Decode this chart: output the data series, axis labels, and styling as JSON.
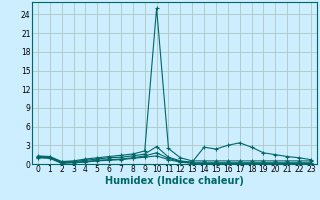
{
  "title": "",
  "xlabel": "Humidex (Indice chaleur)",
  "ylabel": "",
  "background_color": "#cceeff",
  "grid_color_major": "#aacccc",
  "grid_color_minor": "#e8c8c8",
  "line_color": "#006666",
  "x_values": [
    0,
    1,
    2,
    3,
    4,
    5,
    6,
    7,
    8,
    9,
    10,
    11,
    12,
    13,
    14,
    15,
    16,
    17,
    18,
    19,
    20,
    21,
    22,
    23
  ],
  "series": [
    [
      1.3,
      1.2,
      0.4,
      0.5,
      0.8,
      1.0,
      1.2,
      1.4,
      1.6,
      2.1,
      25.0,
      2.5,
      1.0,
      0.5,
      0.5,
      0.5,
      0.5,
      0.5,
      0.5,
      0.5,
      0.5,
      0.5,
      0.5,
      0.5
    ],
    [
      1.2,
      1.1,
      0.3,
      0.4,
      0.6,
      0.8,
      1.0,
      1.1,
      1.3,
      1.6,
      2.8,
      1.1,
      0.5,
      0.3,
      2.7,
      2.4,
      3.0,
      3.4,
      2.7,
      1.8,
      1.5,
      1.2,
      1.0,
      0.7
    ],
    [
      1.1,
      1.0,
      0.2,
      0.3,
      0.4,
      0.6,
      0.7,
      0.8,
      1.0,
      1.3,
      1.8,
      0.9,
      0.4,
      0.2,
      0.2,
      0.2,
      0.2,
      0.2,
      0.2,
      0.2,
      0.2,
      0.2,
      0.2,
      0.2
    ],
    [
      1.0,
      0.9,
      0.1,
      0.2,
      0.3,
      0.5,
      0.6,
      0.7,
      0.9,
      1.1,
      1.3,
      0.7,
      0.3,
      0.1,
      0.1,
      0.1,
      0.1,
      0.1,
      0.1,
      0.1,
      0.1,
      0.1,
      0.1,
      0.1
    ]
  ],
  "ylim": [
    0,
    26
  ],
  "xlim": [
    -0.5,
    23.5
  ],
  "yticks": [
    0,
    3,
    6,
    9,
    12,
    15,
    18,
    21,
    24
  ],
  "xticks": [
    0,
    1,
    2,
    3,
    4,
    5,
    6,
    7,
    8,
    9,
    10,
    11,
    12,
    13,
    14,
    15,
    16,
    17,
    18,
    19,
    20,
    21,
    22,
    23
  ],
  "marker": "+",
  "markersize": 3,
  "linewidth": 0.8,
  "xlabel_fontsize": 7,
  "tick_fontsize": 5.5
}
